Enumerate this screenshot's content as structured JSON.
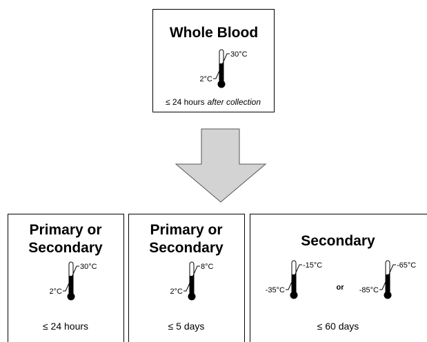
{
  "top_box": {
    "title": "Whole Blood",
    "max_temp": "30°C",
    "min_temp": "2°C",
    "duration": "≤ 24 hours",
    "duration_note": "after collection"
  },
  "bottom_boxes": [
    {
      "title_lines": [
        "Primary or",
        "Secondary"
      ],
      "thermometers": [
        {
          "max_temp": "30°C",
          "min_temp": "2°C"
        }
      ],
      "duration": "≤ 24 hours"
    },
    {
      "title_lines": [
        "Primary or",
        "Secondary"
      ],
      "thermometers": [
        {
          "max_temp": "8°C",
          "min_temp": "2°C"
        }
      ],
      "duration": "≤ 5 days"
    },
    {
      "title_lines": [
        "Secondary"
      ],
      "thermometers": [
        {
          "max_temp": "-15°C",
          "min_temp": "-35°C"
        },
        {
          "max_temp": "-65°C",
          "min_temp": "-85°C"
        }
      ],
      "separator": "or",
      "duration": "≤ 60 days"
    }
  ]
}
